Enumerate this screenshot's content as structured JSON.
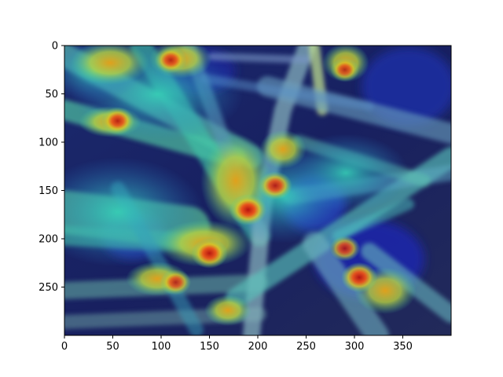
{
  "figure": {
    "image_alt": "Heatmap overlay of grass blades",
    "colormap": "jet",
    "overlay_alpha": 0.5,
    "x_axis": {
      "ticks": [
        0,
        50,
        100,
        150,
        200,
        250,
        300,
        350
      ],
      "range": [
        0,
        400
      ]
    },
    "y_axis": {
      "ticks": [
        0,
        50,
        100,
        150,
        200,
        250
      ],
      "range": [
        0,
        300
      ],
      "inverted": true
    },
    "hotspots": [
      {
        "x": 190,
        "y": 170,
        "value": 1.0
      },
      {
        "x": 150,
        "y": 215,
        "value": 0.95
      },
      {
        "x": 305,
        "y": 240,
        "value": 0.95
      },
      {
        "x": 218,
        "y": 145,
        "value": 0.85
      },
      {
        "x": 55,
        "y": 78,
        "value": 0.8
      },
      {
        "x": 110,
        "y": 15,
        "value": 0.75
      },
      {
        "x": 290,
        "y": 210,
        "value": 0.7
      },
      {
        "x": 115,
        "y": 245,
        "value": 0.7
      },
      {
        "x": 290,
        "y": 25,
        "value": 0.6
      }
    ]
  }
}
